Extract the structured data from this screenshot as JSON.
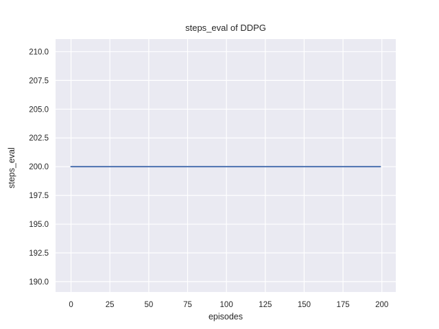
{
  "chart_data": {
    "type": "line",
    "title": "steps_eval of DDPG",
    "xlabel": "episodes",
    "ylabel": "steps_eval",
    "series": [
      {
        "name": "DDPG",
        "color": "#4C72B0",
        "linewidth": 2,
        "x": [
          0,
          199
        ],
        "y": [
          200,
          200
        ]
      }
    ],
    "xticks": [
      0,
      25,
      50,
      75,
      100,
      125,
      150,
      175,
      200
    ],
    "xtick_labels": [
      "0",
      "25",
      "50",
      "75",
      "100",
      "125",
      "150",
      "175",
      "200"
    ],
    "yticks": [
      190.0,
      192.5,
      195.0,
      197.5,
      200.0,
      202.5,
      205.0,
      207.5,
      210.0
    ],
    "ytick_labels": [
      "190.0",
      "192.5",
      "195.0",
      "197.5",
      "200.0",
      "202.5",
      "205.0",
      "207.5",
      "210.0"
    ],
    "xlim": [
      -9.95,
      208.95
    ],
    "ylim": [
      189.1,
      211.1
    ],
    "grid": true,
    "legend_position": "none",
    "style": {
      "axes_background": "#EAEAF2",
      "grid_color": "#FFFFFF",
      "text_color": "#262626",
      "figure_background": "#FFFFFF"
    }
  }
}
